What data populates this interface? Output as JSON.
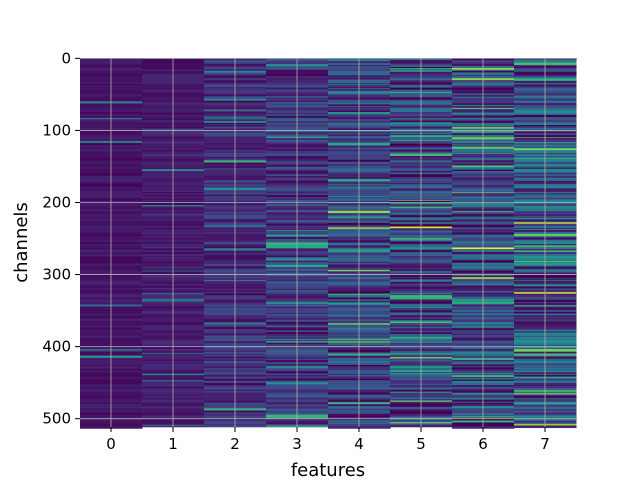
{
  "chart_data": {
    "type": "heatmap",
    "title": "",
    "xlabel": "features",
    "ylabel": "channels",
    "x_ticks": [
      0,
      1,
      2,
      3,
      4,
      5,
      6,
      7
    ],
    "x_tick_labels": [
      "0",
      "1",
      "2",
      "3",
      "4",
      "5",
      "6",
      "7"
    ],
    "y_ticks": [
      0,
      100,
      200,
      300,
      400,
      500
    ],
    "y_tick_labels": [
      "0",
      "100",
      "200",
      "300",
      "400",
      "500"
    ],
    "xlim": [
      -0.5,
      7.5
    ],
    "ylim": [
      511.5,
      -0.5
    ],
    "n_channels": 512,
    "n_features": 8,
    "colormap": "viridis",
    "grid": true,
    "column_mean_intensity": [
      0.06,
      0.08,
      0.14,
      0.16,
      0.2,
      0.18,
      0.22,
      0.24
    ],
    "column_noise": [
      0.05,
      0.06,
      0.12,
      0.15,
      0.22,
      0.22,
      0.24,
      0.26
    ],
    "notable_bright_cells": [
      {
        "feature": 5,
        "channel": 234,
        "value": 0.95
      },
      {
        "feature": 6,
        "channel": 263,
        "value": 1.0
      },
      {
        "feature": 7,
        "channel": 325,
        "value": 0.95
      },
      {
        "feature": 7,
        "channel": 260,
        "value": 0.7
      },
      {
        "feature": 7,
        "channel": 138,
        "value": 0.6
      },
      {
        "feature": 5,
        "channel": 17,
        "value": 0.6
      },
      {
        "feature": 5,
        "channel": 387,
        "value": 0.65
      },
      {
        "feature": 4,
        "channel": 266,
        "value": 0.6
      },
      {
        "feature": 4,
        "channel": 220,
        "value": 0.55
      },
      {
        "feature": 7,
        "channel": 400,
        "value": 0.6
      },
      {
        "feature": 5,
        "channel": 434,
        "value": 0.6
      },
      {
        "feature": 6,
        "channel": 465,
        "value": 0.55
      },
      {
        "feature": 7,
        "channel": 478,
        "value": 0.6
      }
    ]
  }
}
